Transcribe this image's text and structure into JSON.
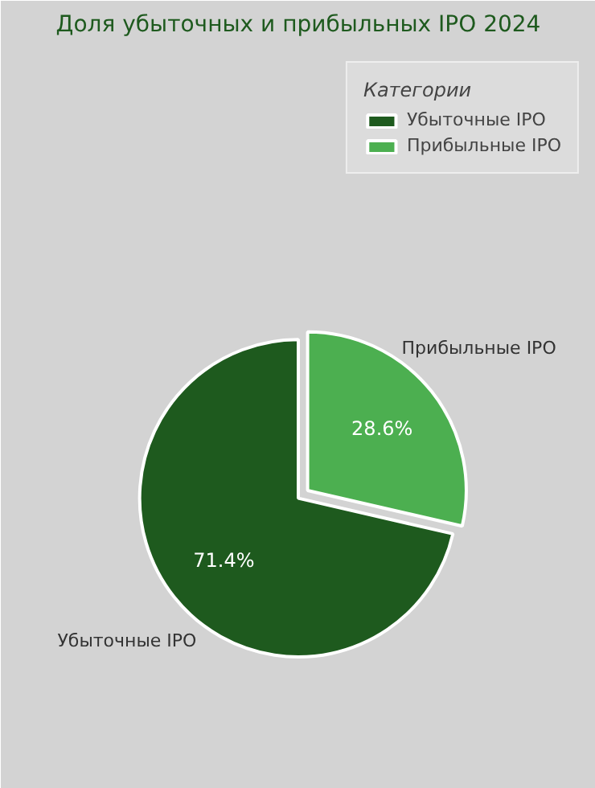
{
  "chart_data": {
    "type": "pie",
    "title": "Доля убыточных и прибыльных IPO 2024",
    "categories": [
      "Убыточные IPO",
      "Прибыльные IPO"
    ],
    "values": [
      71.4,
      28.6
    ],
    "colors": [
      "#1e5a1e",
      "#4caf50"
    ],
    "value_labels": [
      "71.4%",
      "28.6%"
    ],
    "legend_title": "Категории",
    "legend": "top right"
  }
}
